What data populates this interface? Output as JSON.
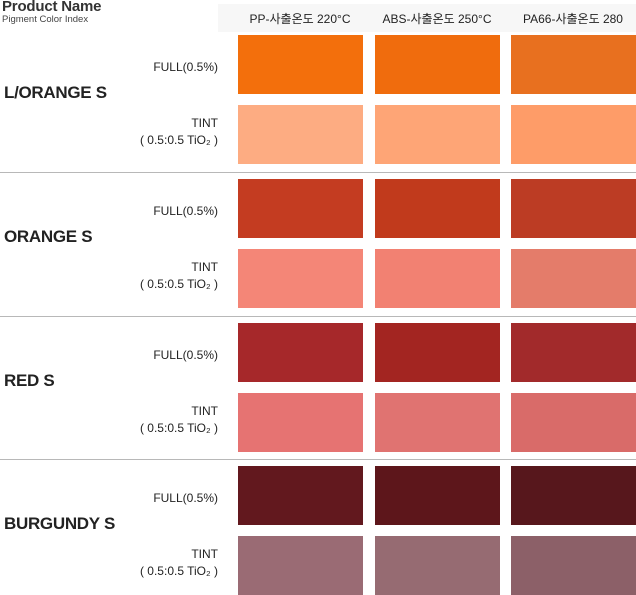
{
  "header": {
    "title": "Product Name",
    "subtitle": "Pigment Color Index"
  },
  "columns": [
    "PP-사출온도 220°C",
    "ABS-사출온도 250°C",
    "PA66-사출온도 280"
  ],
  "rows": {
    "full_label": "FULL(0.5%)",
    "tint_label": "TINT",
    "tint_ratio_label": "( 0.5:0.5 TiO₂ )"
  },
  "products": [
    {
      "name": "L/ORANGE  S",
      "full_colors": [
        "#f36f0c",
        "#f06c0d",
        "#e8701f"
      ],
      "tint_colors": [
        "#fdac82",
        "#fea576",
        "#fe9c68"
      ]
    },
    {
      "name": "ORANGE  S",
      "full_colors": [
        "#c43c21",
        "#c13a1c",
        "#bc3c24"
      ],
      "tint_colors": [
        "#f48677",
        "#f28172",
        "#e47c6a"
      ]
    },
    {
      "name": "RED  S",
      "full_colors": [
        "#a6282a",
        "#a32521",
        "#a22a2b"
      ],
      "tint_colors": [
        "#e67372",
        "#e07371",
        "#d96b69"
      ]
    },
    {
      "name": "BURGUNDY  S",
      "full_colors": [
        "#62181e",
        "#5d161b",
        "#57171c"
      ],
      "tint_colors": [
        "#9a6b74",
        "#966b72",
        "#8c6068"
      ]
    }
  ]
}
